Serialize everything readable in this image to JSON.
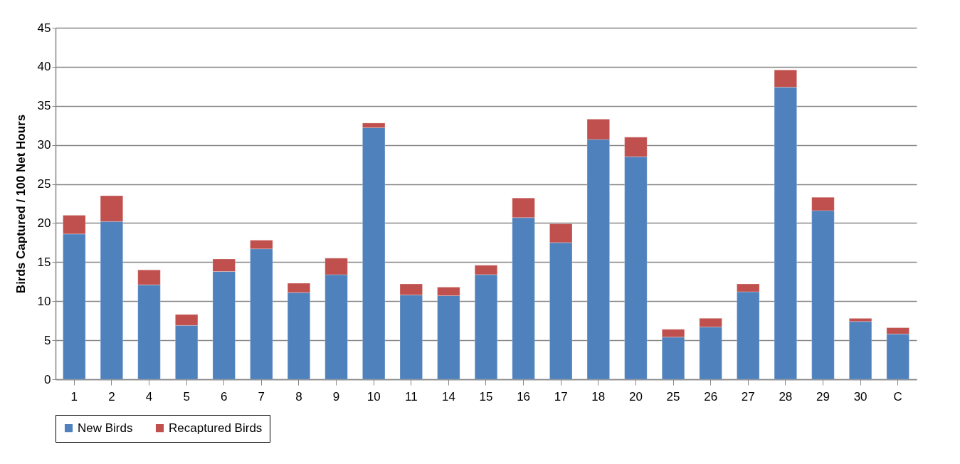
{
  "chart_data": {
    "type": "bar",
    "stacked": true,
    "ylabel": "Birds Captured / 100 Net Hours",
    "categories": [
      "1",
      "2",
      "4",
      "5",
      "6",
      "7",
      "8",
      "9",
      "10",
      "11",
      "14",
      "15",
      "16",
      "17",
      "18",
      "20",
      "25",
      "26",
      "27",
      "28",
      "29",
      "30",
      "C"
    ],
    "series": [
      {
        "name": "New Birds",
        "color": "#4f81bd",
        "values": [
          18.6,
          20.2,
          12.1,
          6.9,
          13.8,
          16.7,
          11.1,
          13.4,
          32.2,
          10.8,
          10.7,
          13.4,
          20.7,
          17.5,
          30.7,
          28.5,
          5.4,
          6.7,
          11.2,
          37.4,
          21.6,
          7.4,
          5.8
        ]
      },
      {
        "name": "Recaptured Birds",
        "color": "#c0504d",
        "values": [
          2.4,
          3.3,
          1.9,
          1.4,
          1.6,
          1.1,
          1.2,
          2.1,
          0.6,
          1.4,
          1.1,
          1.2,
          2.5,
          2.4,
          2.6,
          2.5,
          1.0,
          1.1,
          1.0,
          2.2,
          1.7,
          0.4,
          0.8
        ]
      }
    ],
    "ylim": [
      0,
      45
    ],
    "yticks": [
      0,
      5,
      10,
      15,
      20,
      25,
      30,
      35,
      40,
      45
    ],
    "grid": "y",
    "legend": "bottom"
  }
}
